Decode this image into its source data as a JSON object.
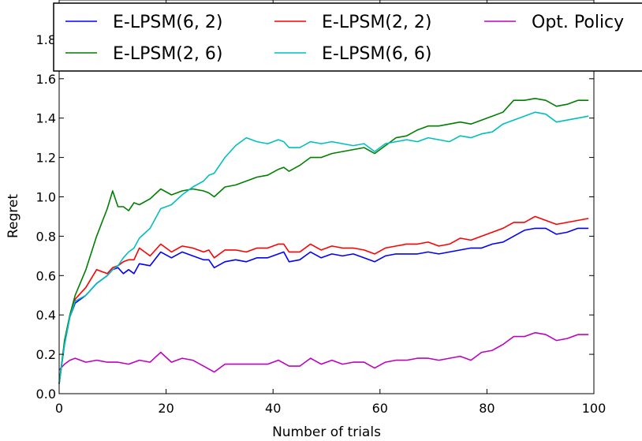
{
  "chart_data": {
    "type": "line",
    "xlabel": "Number of trials",
    "ylabel": "Regret",
    "xlim": [
      0,
      100
    ],
    "ylim": [
      0.0,
      2.0
    ],
    "grid": false,
    "legend_position": "top",
    "x_ticks": [
      0,
      20,
      40,
      60,
      80,
      100
    ],
    "y_ticks": [
      0.0,
      0.2,
      0.4,
      0.6,
      0.8,
      1.0,
      1.2,
      1.4,
      1.6,
      1.8
    ],
    "x_tick_labels": [
      "0",
      "20",
      "40",
      "60",
      "80",
      "100"
    ],
    "y_tick_labels": [
      "0.0",
      "0.2",
      "0.4",
      "0.6",
      "0.8",
      "1.0",
      "1.2",
      "1.4",
      "1.6",
      "1.8"
    ],
    "series": [
      {
        "name": "E-LPSM(6, 2)",
        "color": "#0000ff",
        "x": [
          0,
          1,
          2,
          3,
          5,
          7,
          9,
          10,
          11,
          12,
          13,
          14,
          15,
          17,
          19,
          21,
          23,
          25,
          27,
          28,
          29,
          31,
          33,
          35,
          37,
          39,
          41,
          42,
          43,
          45,
          47,
          49,
          51,
          53,
          55,
          57,
          59,
          61,
          63,
          65,
          67,
          69,
          71,
          73,
          75,
          77,
          79,
          81,
          83,
          85,
          87,
          89,
          91,
          93,
          95,
          97,
          99
        ],
        "y": [
          0.05,
          0.25,
          0.39,
          0.46,
          0.5,
          0.56,
          0.6,
          0.63,
          0.64,
          0.61,
          0.63,
          0.61,
          0.66,
          0.65,
          0.72,
          0.69,
          0.72,
          0.7,
          0.68,
          0.68,
          0.64,
          0.67,
          0.68,
          0.67,
          0.69,
          0.69,
          0.71,
          0.72,
          0.67,
          0.68,
          0.72,
          0.69,
          0.71,
          0.7,
          0.71,
          0.69,
          0.67,
          0.7,
          0.71,
          0.71,
          0.71,
          0.72,
          0.71,
          0.72,
          0.73,
          0.74,
          0.74,
          0.76,
          0.77,
          0.8,
          0.83,
          0.84,
          0.84,
          0.81,
          0.82,
          0.84,
          0.84
        ]
      },
      {
        "name": "E-LPSM(2, 2)",
        "color": "#ff0000",
        "x": [
          0,
          1,
          2,
          3,
          5,
          7,
          9,
          10,
          11,
          12,
          13,
          14,
          15,
          17,
          19,
          21,
          23,
          25,
          27,
          28,
          29,
          31,
          33,
          35,
          37,
          39,
          41,
          42,
          43,
          45,
          47,
          49,
          51,
          53,
          55,
          57,
          59,
          61,
          63,
          65,
          67,
          69,
          71,
          73,
          75,
          77,
          79,
          81,
          83,
          85,
          87,
          89,
          91,
          93,
          95,
          97,
          99
        ],
        "y": [
          0.05,
          0.26,
          0.39,
          0.48,
          0.54,
          0.63,
          0.61,
          0.64,
          0.65,
          0.67,
          0.68,
          0.68,
          0.74,
          0.7,
          0.76,
          0.72,
          0.75,
          0.74,
          0.72,
          0.73,
          0.69,
          0.73,
          0.73,
          0.72,
          0.74,
          0.74,
          0.76,
          0.76,
          0.72,
          0.72,
          0.76,
          0.73,
          0.75,
          0.74,
          0.74,
          0.73,
          0.71,
          0.74,
          0.75,
          0.76,
          0.76,
          0.77,
          0.75,
          0.76,
          0.79,
          0.78,
          0.8,
          0.82,
          0.84,
          0.87,
          0.87,
          0.9,
          0.88,
          0.86,
          0.87,
          0.88,
          0.89
        ]
      },
      {
        "name": "Opt. Policy",
        "color": "#bf00bf",
        "x": [
          0,
          1,
          2,
          3,
          5,
          7,
          9,
          11,
          13,
          15,
          17,
          19,
          21,
          23,
          25,
          27,
          29,
          31,
          33,
          35,
          37,
          39,
          41,
          43,
          45,
          47,
          49,
          51,
          53,
          55,
          57,
          59,
          61,
          63,
          65,
          67,
          69,
          71,
          73,
          75,
          77,
          79,
          81,
          83,
          85,
          87,
          89,
          91,
          93,
          95,
          97,
          99
        ],
        "y": [
          0.12,
          0.15,
          0.17,
          0.18,
          0.16,
          0.17,
          0.16,
          0.16,
          0.15,
          0.17,
          0.16,
          0.21,
          0.16,
          0.18,
          0.17,
          0.14,
          0.11,
          0.15,
          0.15,
          0.15,
          0.15,
          0.15,
          0.17,
          0.14,
          0.14,
          0.18,
          0.15,
          0.17,
          0.15,
          0.16,
          0.16,
          0.13,
          0.16,
          0.17,
          0.17,
          0.18,
          0.18,
          0.17,
          0.18,
          0.19,
          0.17,
          0.21,
          0.22,
          0.25,
          0.29,
          0.29,
          0.31,
          0.3,
          0.27,
          0.28,
          0.3,
          0.3
        ]
      },
      {
        "name": "E-LPSM(2, 6)",
        "color": "#007f00",
        "x": [
          0,
          1,
          2,
          3,
          5,
          7,
          9,
          10,
          11,
          12,
          13,
          14,
          15,
          17,
          19,
          21,
          23,
          25,
          27,
          28,
          29,
          31,
          33,
          35,
          37,
          39,
          41,
          42,
          43,
          45,
          47,
          49,
          51,
          53,
          55,
          57,
          59,
          61,
          63,
          65,
          67,
          69,
          71,
          73,
          75,
          77,
          79,
          81,
          83,
          85,
          87,
          89,
          91,
          93,
          95,
          97,
          99
        ],
        "y": [
          0.05,
          0.27,
          0.4,
          0.5,
          0.63,
          0.8,
          0.94,
          1.03,
          0.95,
          0.95,
          0.93,
          0.97,
          0.96,
          0.99,
          1.04,
          1.01,
          1.03,
          1.04,
          1.03,
          1.02,
          1.0,
          1.05,
          1.06,
          1.08,
          1.1,
          1.11,
          1.14,
          1.15,
          1.13,
          1.16,
          1.2,
          1.2,
          1.22,
          1.23,
          1.24,
          1.25,
          1.22,
          1.26,
          1.3,
          1.31,
          1.34,
          1.36,
          1.36,
          1.37,
          1.38,
          1.37,
          1.39,
          1.41,
          1.43,
          1.49,
          1.49,
          1.5,
          1.49,
          1.46,
          1.47,
          1.49,
          1.49
        ]
      },
      {
        "name": "E-LPSM(6, 6)",
        "color": "#00bfbf",
        "x": [
          0,
          1,
          2,
          3,
          5,
          7,
          9,
          10,
          11,
          12,
          13,
          14,
          15,
          17,
          19,
          21,
          23,
          25,
          27,
          28,
          29,
          31,
          33,
          35,
          37,
          39,
          41,
          42,
          43,
          45,
          47,
          49,
          51,
          53,
          55,
          57,
          59,
          61,
          63,
          65,
          67,
          69,
          71,
          73,
          75,
          77,
          79,
          81,
          83,
          85,
          87,
          89,
          91,
          93,
          95,
          97,
          99
        ],
        "y": [
          0.05,
          0.25,
          0.39,
          0.47,
          0.5,
          0.56,
          0.6,
          0.63,
          0.65,
          0.69,
          0.72,
          0.74,
          0.79,
          0.84,
          0.94,
          0.96,
          1.01,
          1.05,
          1.08,
          1.11,
          1.12,
          1.2,
          1.26,
          1.3,
          1.28,
          1.27,
          1.29,
          1.28,
          1.25,
          1.25,
          1.28,
          1.27,
          1.28,
          1.27,
          1.26,
          1.27,
          1.23,
          1.27,
          1.28,
          1.29,
          1.28,
          1.3,
          1.29,
          1.28,
          1.31,
          1.3,
          1.32,
          1.33,
          1.37,
          1.39,
          1.41,
          1.43,
          1.42,
          1.38,
          1.39,
          1.4,
          1.41
        ]
      }
    ],
    "legend_order": [
      "E-LPSM(6, 2)",
      "E-LPSM(2, 2)",
      "Opt. Policy",
      "E-LPSM(2, 6)",
      "E-LPSM(6, 6)"
    ]
  }
}
